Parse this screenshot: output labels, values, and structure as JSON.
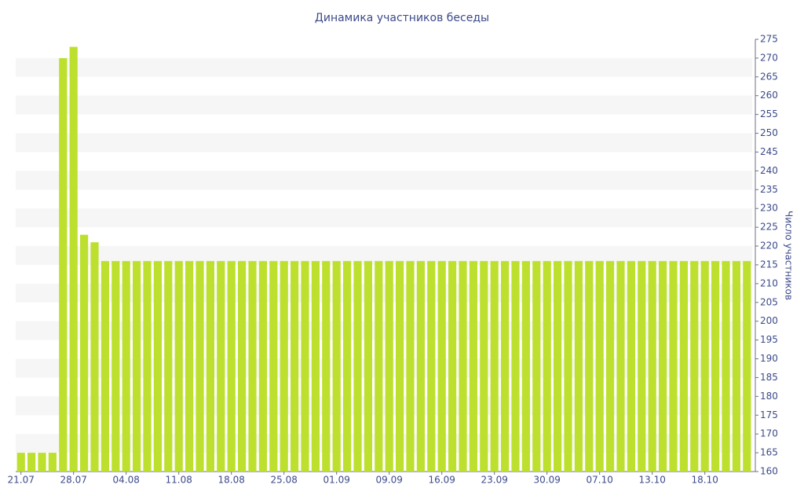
{
  "chart_data": {
    "type": "bar",
    "title": "Динамика участников беседы",
    "y_label": "Число участников",
    "categories": [
      "21.07",
      null,
      null,
      null,
      null,
      "28.07",
      null,
      null,
      null,
      null,
      "04.08",
      null,
      null,
      null,
      null,
      "11.08",
      null,
      null,
      null,
      null,
      "18.08",
      null,
      null,
      null,
      null,
      "25.08",
      null,
      null,
      null,
      null,
      "01.09",
      null,
      null,
      null,
      null,
      "09.09",
      null,
      null,
      null,
      null,
      "16.09",
      null,
      null,
      null,
      null,
      "23.09",
      null,
      null,
      null,
      null,
      "30.09",
      null,
      null,
      null,
      null,
      "07.10",
      null,
      null,
      null,
      null,
      "13.10",
      null,
      null,
      null,
      null,
      "18.10",
      null,
      null,
      null,
      null
    ],
    "values": [
      165,
      165,
      165,
      165,
      270,
      273,
      223,
      221,
      216,
      216,
      216,
      216,
      216,
      216,
      216,
      216,
      216,
      216,
      216,
      216,
      216,
      216,
      216,
      216,
      216,
      216,
      216,
      216,
      216,
      216,
      216,
      216,
      216,
      216,
      216,
      216,
      216,
      216,
      216,
      216,
      216,
      216,
      216,
      216,
      216,
      216,
      216,
      216,
      216,
      216,
      216,
      216,
      216,
      216,
      216,
      216,
      216,
      216,
      216,
      216,
      216,
      216,
      216,
      216,
      216,
      216,
      216,
      216,
      216,
      216
    ],
    "color": "#bde02e",
    "ylim": [
      160,
      275
    ],
    "yticks": [
      160,
      165,
      170,
      175,
      180,
      185,
      190,
      195,
      200,
      205,
      210,
      215,
      220,
      225,
      230,
      235,
      240,
      245,
      250,
      255,
      260,
      265,
      270,
      275
    ],
    "y_axis_side": "right",
    "banded_grid": true
  }
}
